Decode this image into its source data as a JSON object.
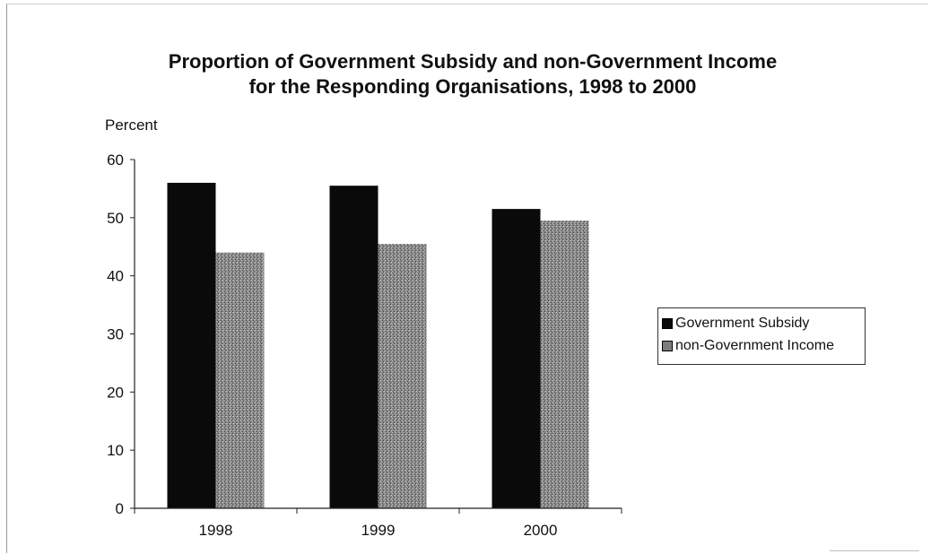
{
  "chart_data": {
    "type": "bar",
    "title": [
      "Proportion of Government Subsidy and non-Government Income",
      "for the Responding Organisations, 1998 to 2000"
    ],
    "ylabel": "Percent",
    "xlabel": "",
    "categories": [
      "1998",
      "1999",
      "2000"
    ],
    "ylim": [
      0,
      60
    ],
    "yticks": [
      0,
      10,
      20,
      30,
      40,
      50,
      60
    ],
    "grid": false,
    "legend_position": "right",
    "series": [
      {
        "name": "Government Subsidy",
        "values": [
          56,
          55.5,
          51.5
        ],
        "color": "#0a0a0a"
      },
      {
        "name": "non-Government Income",
        "values": [
          44,
          45.5,
          49.5
        ],
        "color": "#7d7d7d"
      }
    ]
  }
}
